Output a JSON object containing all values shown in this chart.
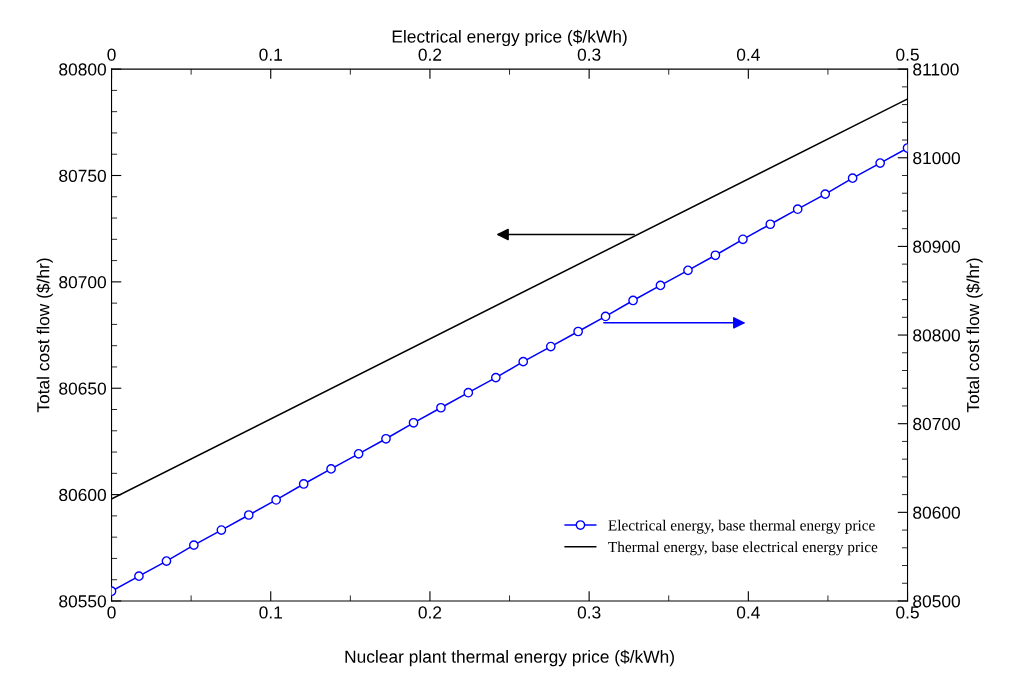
{
  "chart_data": {
    "type": "line",
    "xlabel": "Nuclear plant thermal energy price ($/kWh)",
    "ylabel": "Total cost flow ($/hr)",
    "y2label": "Total cost flow ($/hr)",
    "x2label": "Electrical energy price ($/kWh)",
    "xlim": [
      0,
      0.5
    ],
    "xticks": [
      0,
      {
        "value": 0.05,
        "label": null
      },
      0.1,
      {
        "value": 0.15,
        "label": null
      },
      0.2,
      {
        "value": 0.25,
        "label": null
      },
      0.3,
      {
        "value": 0.35,
        "label": null
      },
      0.4,
      {
        "value": 0.45,
        "label": null
      },
      0.5
    ],
    "x2lim": [
      0,
      0.5
    ],
    "x2ticks": [
      0,
      {
        "value": 0.05,
        "label": null
      },
      0.1,
      {
        "value": 0.15,
        "label": null
      },
      0.2,
      {
        "value": 0.25,
        "label": null
      },
      0.3,
      {
        "value": 0.35,
        "label": null
      },
      0.4,
      {
        "value": 0.45,
        "label": null
      },
      0.5
    ],
    "ylim": [
      80550,
      80800
    ],
    "yticks": [
      80550,
      {
        "value": 80560,
        "label": null
      },
      {
        "value": 80570,
        "label": null
      },
      {
        "value": 80580,
        "label": null
      },
      {
        "value": 80590,
        "label": null
      },
      80600,
      {
        "value": 80610,
        "label": null
      },
      {
        "value": 80620,
        "label": null
      },
      {
        "value": 80630,
        "label": null
      },
      {
        "value": 80640,
        "label": null
      },
      80650,
      {
        "value": 80660,
        "label": null
      },
      {
        "value": 80670,
        "label": null
      },
      {
        "value": 80680,
        "label": null
      },
      {
        "value": 80690,
        "label": null
      },
      80700,
      {
        "value": 80710,
        "label": null
      },
      {
        "value": 80720,
        "label": null
      },
      {
        "value": 80730,
        "label": null
      },
      {
        "value": 80740,
        "label": null
      },
      80750,
      {
        "value": 80760,
        "label": null
      },
      {
        "value": 80770,
        "label": null
      },
      {
        "value": 80780,
        "label": null
      },
      {
        "value": 80790,
        "label": null
      },
      80800
    ],
    "y2lim": [
      80500,
      81100
    ],
    "y2ticks": [
      80500,
      {
        "value": 80520,
        "label": null
      },
      {
        "value": 80540,
        "label": null
      },
      {
        "value": 80560,
        "label": null
      },
      {
        "value": 80580,
        "label": null
      },
      80600,
      {
        "value": 80620,
        "label": null
      },
      {
        "value": 80640,
        "label": null
      },
      {
        "value": 80660,
        "label": null
      },
      {
        "value": 80680,
        "label": null
      },
      80700,
      {
        "value": 80720,
        "label": null
      },
      {
        "value": 80740,
        "label": null
      },
      {
        "value": 80760,
        "label": null
      },
      {
        "value": 80780,
        "label": null
      },
      80800,
      {
        "value": 80820,
        "label": null
      },
      {
        "value": 80840,
        "label": null
      },
      {
        "value": 80860,
        "label": null
      },
      {
        "value": 80880,
        "label": null
      },
      80900,
      {
        "value": 80920,
        "label": null
      },
      {
        "value": 80940,
        "label": null
      },
      {
        "value": 80960,
        "label": null
      },
      {
        "value": 80980,
        "label": null
      },
      81000,
      {
        "value": 81020,
        "label": null
      },
      {
        "value": 81040,
        "label": null
      },
      {
        "value": 81060,
        "label": null
      },
      {
        "value": 81080,
        "label": null
      },
      81100
    ],
    "grid": false,
    "legend": "bottom right",
    "series": [
      {
        "name": "Electrical energy, base thermal energy price",
        "color": "#0000ff",
        "axis": "y2",
        "marker": "circle",
        "line_style": "solid",
        "x": [
          0,
          0.0172,
          0.0345,
          0.0517,
          0.069,
          0.0862,
          0.1034,
          0.1207,
          0.1379,
          0.1552,
          0.1724,
          0.1897,
          0.2069,
          0.2241,
          0.2414,
          0.2586,
          0.2759,
          0.2931,
          0.3103,
          0.3276,
          0.3448,
          0.3621,
          0.3793,
          0.3966,
          0.4138,
          0.431,
          0.4483,
          0.4655,
          0.4828,
          0.5
        ],
        "values": [
          80511,
          80528,
          80545,
          80563,
          80580,
          80597,
          80614,
          80632,
          80649,
          80666,
          80683,
          80701,
          80718,
          80735,
          80752,
          80770,
          80787,
          80804,
          80821,
          80839,
          80856,
          80873,
          80890,
          80908,
          80925,
          80942,
          80959,
          80977,
          80994,
          81011
        ]
      },
      {
        "name": "Thermal energy, base electrical energy price",
        "color": "#000000",
        "marker": "none",
        "line_style": "solid",
        "x": [
          0,
          0.5
        ],
        "values": [
          80598,
          80786
        ]
      }
    ]
  }
}
